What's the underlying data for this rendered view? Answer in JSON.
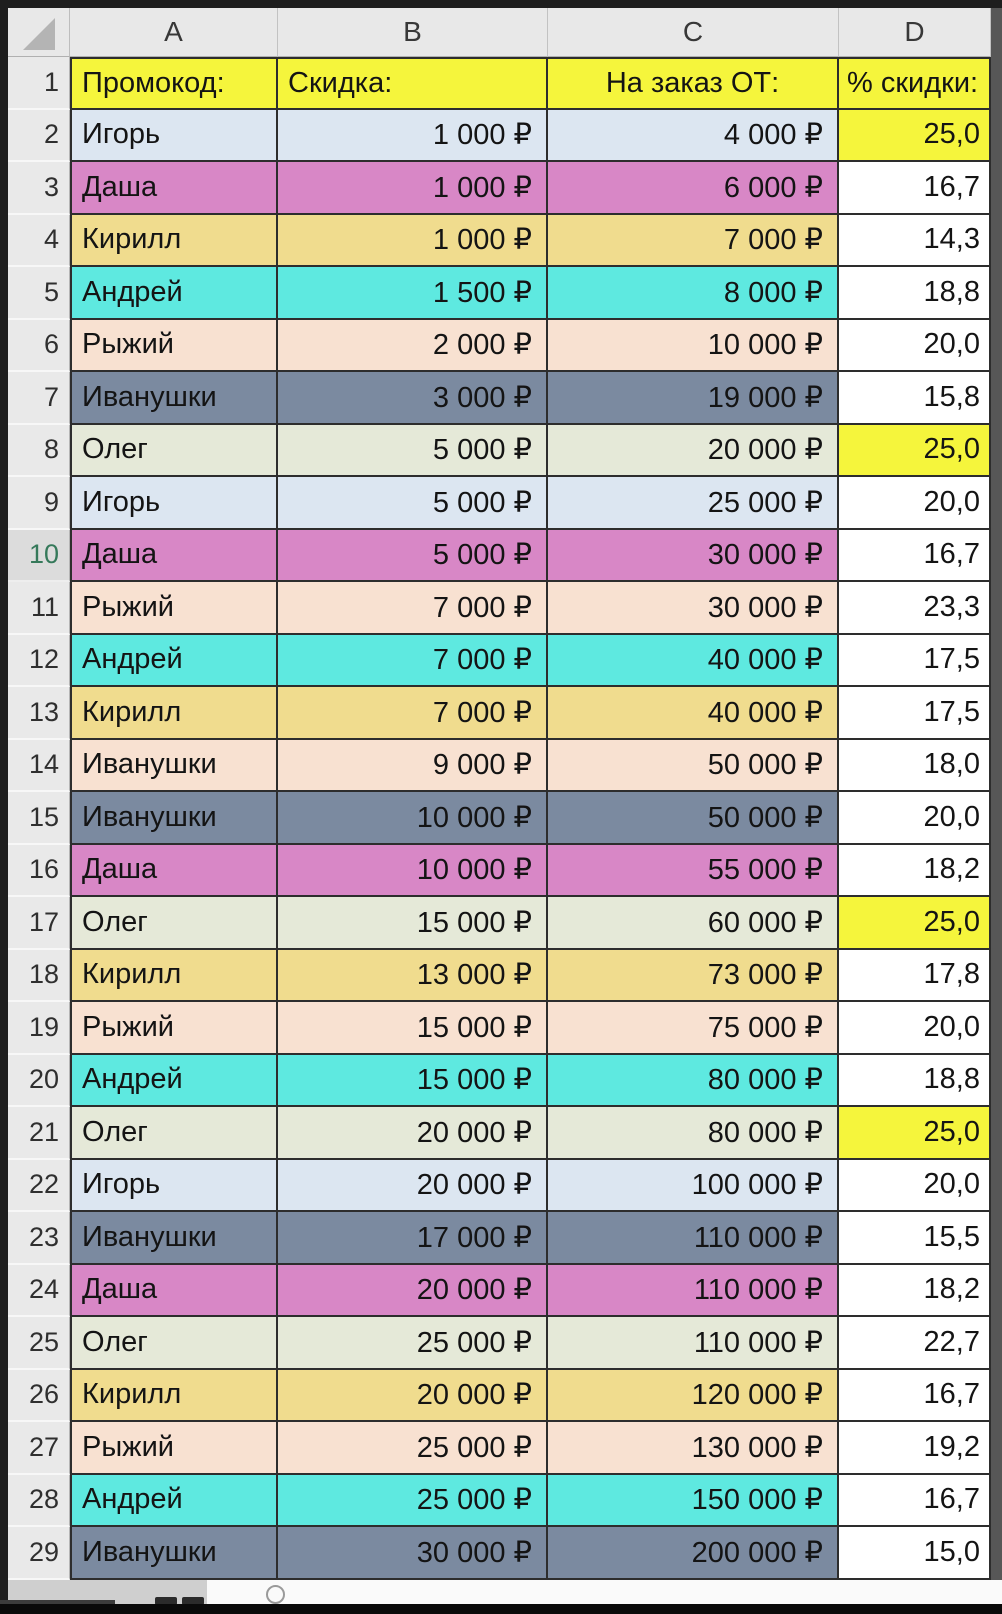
{
  "sheet": {
    "columns": [
      "A",
      "B",
      "C",
      "D"
    ],
    "header_row": {
      "number": "1",
      "cells": [
        "Промокод:",
        "Скидка:",
        "На заказ ОТ:",
        "% скидки:"
      ]
    },
    "rows": [
      {
        "n": "2",
        "name": "Игорь",
        "discount": "1 000 ₽",
        "order_from": "4 000 ₽",
        "pct": "25,0",
        "color": "blue",
        "pct_color": "yellow",
        "selected": false
      },
      {
        "n": "3",
        "name": "Даша",
        "discount": "1 000 ₽",
        "order_from": "6 000 ₽",
        "pct": "16,7",
        "color": "pink",
        "pct_color": "white",
        "selected": false
      },
      {
        "n": "4",
        "name": "Кирилл",
        "discount": "1 000 ₽",
        "order_from": "7 000 ₽",
        "pct": "14,3",
        "color": "khaki",
        "pct_color": "white",
        "selected": false
      },
      {
        "n": "5",
        "name": "Андрей",
        "discount": "1 500 ₽",
        "order_from": "8 000 ₽",
        "pct": "18,8",
        "color": "cyan",
        "pct_color": "white",
        "selected": false
      },
      {
        "n": "6",
        "name": "Рыжий",
        "discount": "2 000 ₽",
        "order_from": "10 000 ₽",
        "pct": "20,0",
        "color": "peach",
        "pct_color": "white",
        "selected": false
      },
      {
        "n": "7",
        "name": "Иванушки",
        "discount": "3 000 ₽",
        "order_from": "19 000 ₽",
        "pct": "15,8",
        "color": "slate",
        "pct_color": "white",
        "selected": false
      },
      {
        "n": "8",
        "name": "Олег",
        "discount": "5 000 ₽",
        "order_from": "20 000 ₽",
        "pct": "25,0",
        "color": "green",
        "pct_color": "yellow",
        "selected": false
      },
      {
        "n": "9",
        "name": "Игорь",
        "discount": "5 000 ₽",
        "order_from": "25 000 ₽",
        "pct": "20,0",
        "color": "blue",
        "pct_color": "white",
        "selected": false
      },
      {
        "n": "10",
        "name": "Даша",
        "discount": "5 000 ₽",
        "order_from": "30 000 ₽",
        "pct": "16,7",
        "color": "pink",
        "pct_color": "white",
        "selected": true
      },
      {
        "n": "11",
        "name": "Рыжий",
        "discount": "7 000 ₽",
        "order_from": "30 000 ₽",
        "pct": "23,3",
        "color": "peach",
        "pct_color": "white",
        "selected": false
      },
      {
        "n": "12",
        "name": "Андрей",
        "discount": "7 000 ₽",
        "order_from": "40 000 ₽",
        "pct": "17,5",
        "color": "cyan",
        "pct_color": "white",
        "selected": false
      },
      {
        "n": "13",
        "name": "Кирилл",
        "discount": "7 000 ₽",
        "order_from": "40 000 ₽",
        "pct": "17,5",
        "color": "khaki",
        "pct_color": "white",
        "selected": false
      },
      {
        "n": "14",
        "name": "Иванушки",
        "discount": "9 000 ₽",
        "order_from": "50 000 ₽",
        "pct": "18,0",
        "color": "peach",
        "pct_color": "white",
        "selected": false
      },
      {
        "n": "15",
        "name": "Иванушки",
        "discount": "10 000 ₽",
        "order_from": "50 000 ₽",
        "pct": "20,0",
        "color": "slate",
        "pct_color": "white",
        "selected": false
      },
      {
        "n": "16",
        "name": "Даша",
        "discount": "10 000 ₽",
        "order_from": "55 000 ₽",
        "pct": "18,2",
        "color": "pink",
        "pct_color": "white",
        "selected": false
      },
      {
        "n": "17",
        "name": "Олег",
        "discount": "15 000 ₽",
        "order_from": "60 000 ₽",
        "pct": "25,0",
        "color": "green",
        "pct_color": "yellow",
        "selected": false
      },
      {
        "n": "18",
        "name": "Кирилл",
        "discount": "13 000 ₽",
        "order_from": "73 000 ₽",
        "pct": "17,8",
        "color": "khaki",
        "pct_color": "white",
        "selected": false
      },
      {
        "n": "19",
        "name": "Рыжий",
        "discount": "15 000 ₽",
        "order_from": "75 000 ₽",
        "pct": "20,0",
        "color": "peach",
        "pct_color": "white",
        "selected": false
      },
      {
        "n": "20",
        "name": "Андрей",
        "discount": "15 000 ₽",
        "order_from": "80 000 ₽",
        "pct": "18,8",
        "color": "cyan",
        "pct_color": "white",
        "selected": false
      },
      {
        "n": "21",
        "name": "Олег",
        "discount": "20 000 ₽",
        "order_from": "80 000 ₽",
        "pct": "25,0",
        "color": "green",
        "pct_color": "yellow",
        "selected": false
      },
      {
        "n": "22",
        "name": "Игорь",
        "discount": "20 000 ₽",
        "order_from": "100 000 ₽",
        "pct": "20,0",
        "color": "blue",
        "pct_color": "white",
        "selected": false
      },
      {
        "n": "23",
        "name": "Иванушки",
        "discount": "17 000 ₽",
        "order_from": "110 000 ₽",
        "pct": "15,5",
        "color": "slate",
        "pct_color": "white",
        "selected": false
      },
      {
        "n": "24",
        "name": "Даша",
        "discount": "20 000 ₽",
        "order_from": "110 000 ₽",
        "pct": "18,2",
        "color": "pink",
        "pct_color": "white",
        "selected": false
      },
      {
        "n": "25",
        "name": "Олег",
        "discount": "25 000 ₽",
        "order_from": "110 000 ₽",
        "pct": "22,7",
        "color": "green",
        "pct_color": "white",
        "selected": false
      },
      {
        "n": "26",
        "name": "Кирилл",
        "discount": "20 000 ₽",
        "order_from": "120 000 ₽",
        "pct": "16,7",
        "color": "khaki",
        "pct_color": "white",
        "selected": false
      },
      {
        "n": "27",
        "name": "Рыжий",
        "discount": "25 000 ₽",
        "order_from": "130 000 ₽",
        "pct": "19,2",
        "color": "peach",
        "pct_color": "white",
        "selected": false
      },
      {
        "n": "28",
        "name": "Андрей",
        "discount": "25 000 ₽",
        "order_from": "150 000 ₽",
        "pct": "16,7",
        "color": "cyan",
        "pct_color": "white",
        "selected": false
      },
      {
        "n": "29",
        "name": "Иванушки",
        "discount": "30 000 ₽",
        "order_from": "200 000 ₽",
        "pct": "15,0",
        "color": "slate",
        "pct_color": "white",
        "selected": false
      }
    ],
    "palette": {
      "header_yellow": "#f5f53c",
      "yellow": "#f5f53c",
      "white": "#ffffff",
      "blue": "#dce6f1",
      "pink": "#d887c6",
      "khaki": "#f0dc8e",
      "cyan": "#5ee9e0",
      "peach": "#f8e1d1",
      "slate": "#7b8aa0",
      "green": "#e5e9d8"
    },
    "tab_bar": {
      "add_sheet_icon": "plus-circle-icon"
    }
  }
}
